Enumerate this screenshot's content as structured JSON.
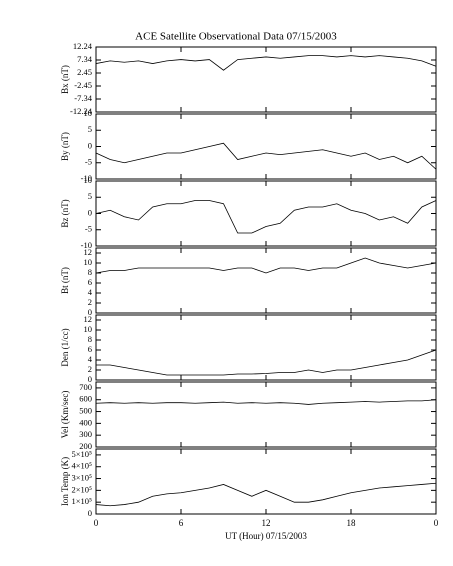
{
  "chart_data": [
    {
      "type": "line",
      "title": "ACE Satellite Observational Data  07/15/2003",
      "ylabel": "Bx (nT)",
      "color": "#000000",
      "x": [
        0,
        1,
        2,
        3,
        4,
        5,
        6,
        7,
        8,
        9,
        10,
        11,
        12,
        13,
        14,
        15,
        16,
        17,
        18,
        19,
        20,
        21,
        22,
        23,
        24
      ],
      "values": [
        6,
        7,
        6.5,
        7,
        6,
        7,
        7.5,
        7,
        7.5,
        3.5,
        7.5,
        8,
        8.5,
        8,
        8.5,
        9,
        9,
        8.5,
        9,
        8.5,
        9,
        8.5,
        8,
        7,
        5
      ],
      "xlim": [
        0,
        24
      ],
      "ylim": [
        -12.24,
        12.24
      ],
      "yticks": [
        -12.24,
        -7.34,
        -2.45,
        2.45,
        7.34,
        12.24
      ]
    },
    {
      "type": "line",
      "ylabel": "By (nT)",
      "color": "#000000",
      "x": [
        0,
        1,
        2,
        3,
        4,
        5,
        6,
        7,
        8,
        9,
        10,
        11,
        12,
        13,
        14,
        15,
        16,
        17,
        18,
        19,
        20,
        21,
        22,
        23,
        24
      ],
      "values": [
        -2,
        -4,
        -5,
        -4,
        -3,
        -2,
        -2,
        -1,
        0,
        1,
        -4,
        -3,
        -2,
        -2.5,
        -2,
        -1.5,
        -1,
        -2,
        -3,
        -2,
        -4,
        -3,
        -5,
        -3,
        -7
      ],
      "xlim": [
        0,
        24
      ],
      "ylim": [
        -10,
        10
      ],
      "yticks": [
        -10,
        -5,
        0,
        5,
        10
      ]
    },
    {
      "type": "line",
      "ylabel": "Bz (nT)",
      "color": "#000000",
      "x": [
        0,
        1,
        2,
        3,
        4,
        5,
        6,
        7,
        8,
        9,
        10,
        11,
        12,
        13,
        14,
        15,
        16,
        17,
        18,
        19,
        20,
        21,
        22,
        23,
        24
      ],
      "values": [
        0,
        1,
        -1,
        -2,
        2,
        3,
        3,
        4,
        4,
        3,
        -6,
        -6,
        -4,
        -3,
        1,
        2,
        2,
        3,
        1,
        0,
        -2,
        -1,
        -3,
        2,
        4
      ],
      "xlim": [
        0,
        24
      ],
      "ylim": [
        -10,
        10
      ],
      "yticks": [
        -10,
        -5,
        0,
        5,
        10
      ]
    },
    {
      "type": "line",
      "ylabel": "Bt (nT)",
      "color": "#000000",
      "x": [
        0,
        1,
        2,
        3,
        4,
        5,
        6,
        7,
        8,
        9,
        10,
        11,
        12,
        13,
        14,
        15,
        16,
        17,
        18,
        19,
        20,
        21,
        22,
        23,
        24
      ],
      "values": [
        8,
        8.5,
        8.5,
        9,
        9,
        9,
        9,
        9,
        9,
        8.5,
        9,
        9,
        8,
        9,
        9,
        8.5,
        9,
        9,
        10,
        11,
        10,
        9.5,
        9,
        9.5,
        10
      ],
      "xlim": [
        0,
        24
      ],
      "ylim": [
        0,
        13
      ],
      "yticks": [
        0,
        2,
        4,
        6,
        8,
        10,
        12
      ]
    },
    {
      "type": "line",
      "ylabel": "Den (1/cc)",
      "color": "#000000",
      "x": [
        0,
        1,
        2,
        3,
        4,
        5,
        6,
        7,
        8,
        9,
        10,
        11,
        12,
        13,
        14,
        15,
        16,
        17,
        18,
        19,
        20,
        21,
        22,
        23,
        24
      ],
      "values": [
        3,
        3,
        2.5,
        2,
        1.5,
        1,
        1,
        1,
        1,
        1,
        1.2,
        1.2,
        1.3,
        1.5,
        1.5,
        2,
        1.5,
        2,
        2,
        2.5,
        3,
        3.5,
        4,
        5,
        6
      ],
      "xlim": [
        0,
        24
      ],
      "ylim": [
        0,
        13
      ],
      "yticks": [
        0,
        2,
        4,
        6,
        8,
        10,
        12
      ]
    },
    {
      "type": "line",
      "ylabel": "Vel (Km/sec)",
      "color": "#000000",
      "x": [
        0,
        1,
        2,
        3,
        4,
        5,
        6,
        7,
        8,
        9,
        10,
        11,
        12,
        13,
        14,
        15,
        16,
        17,
        18,
        19,
        20,
        21,
        22,
        23,
        24
      ],
      "values": [
        570,
        575,
        570,
        575,
        570,
        575,
        575,
        570,
        575,
        580,
        570,
        575,
        570,
        575,
        570,
        560,
        570,
        575,
        580,
        585,
        580,
        585,
        590,
        590,
        600
      ],
      "xlim": [
        0,
        24
      ],
      "ylim": [
        200,
        750
      ],
      "yticks": [
        200,
        300,
        400,
        500,
        600,
        700
      ]
    },
    {
      "type": "line",
      "ylabel": "Ion Temp (K)",
      "xlabel": "UT (Hour)  07/15/2003",
      "color": "#000000",
      "x": [
        0,
        1,
        2,
        3,
        4,
        5,
        6,
        7,
        8,
        9,
        10,
        11,
        12,
        13,
        14,
        15,
        16,
        17,
        18,
        19,
        20,
        21,
        22,
        23,
        24
      ],
      "values": [
        80000,
        70000,
        80000,
        100000,
        150000,
        170000,
        180000,
        200000,
        220000,
        250000,
        200000,
        150000,
        200000,
        150000,
        100000,
        100000,
        120000,
        150000,
        180000,
        200000,
        220000,
        230000,
        240000,
        250000,
        260000
      ],
      "xlim": [
        0,
        24
      ],
      "ylim": [
        0,
        550000
      ],
      "yticks": [
        0,
        {
          "value": 100000,
          "label": "1×10⁵"
        },
        {
          "value": 200000,
          "label": "2×10⁵"
        },
        {
          "value": 300000,
          "label": "3×10⁵"
        },
        {
          "value": 400000,
          "label": "4×10⁵"
        },
        {
          "value": 500000,
          "label": "5×10⁵"
        }
      ],
      "xticks": [
        0,
        6,
        12,
        18,
        {
          "value": 24,
          "label": "0"
        }
      ]
    }
  ]
}
